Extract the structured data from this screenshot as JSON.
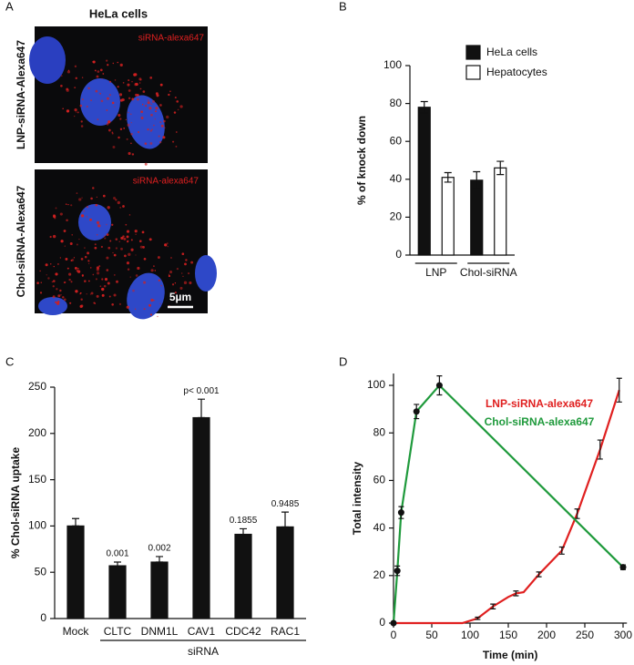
{
  "panel_labels": [
    "A",
    "B",
    "C",
    "D"
  ],
  "panel_a": {
    "title": "HeLa  cells",
    "images": [
      {
        "row_label": "LNP-siRNA-Alexa647",
        "stain_label": "siRNA-alexa647"
      },
      {
        "row_label": "Chol-siRNA-Alexa647",
        "stain_label": "siRNA-alexa647",
        "scale_bar": "5µm"
      }
    ]
  },
  "chart_data": [
    {
      "type": "bar",
      "ylabel": "% of knock down",
      "categories": [
        "LNP",
        "Chol-siRNA"
      ],
      "series": [
        {
          "name": "HeLa cells",
          "color": "#111111",
          "values": [
            78,
            39.5
          ],
          "errors": [
            3,
            4.5
          ]
        },
        {
          "name": "Hepatocytes",
          "color": "#ffffff",
          "values": [
            41,
            46
          ],
          "errors": [
            2.5,
            3.5
          ]
        }
      ],
      "ylim": [
        0,
        100
      ],
      "yticks": [
        0,
        20,
        40,
        60,
        80,
        100
      ],
      "legend": "upper right"
    },
    {
      "type": "bar",
      "ylabel": "% Chol-siRNA uptake",
      "xlabel": "siRNA",
      "categories": [
        "Mock",
        "CLTC",
        "DNM1L",
        "CAV1",
        "CDC42",
        "RAC1"
      ],
      "values": [
        100,
        57,
        61,
        217,
        91,
        99
      ],
      "errors": [
        8,
        4,
        6,
        20,
        6,
        16
      ],
      "annotations": [
        null,
        "0.001",
        "0.002",
        "p< 0.001",
        "0.1855",
        "0.9485"
      ],
      "color": "#111111",
      "ylim": [
        0,
        250
      ],
      "yticks": [
        0,
        50,
        100,
        150,
        200,
        250
      ]
    },
    {
      "type": "line",
      "xlabel": "Time (min)",
      "ylabel": "Total intensity",
      "series": [
        {
          "name": "LNP-siRNA-alexa647",
          "color": "#e02020",
          "x": [
            0,
            50,
            90,
            110,
            130,
            150,
            160,
            170,
            190,
            220,
            240,
            270,
            295
          ],
          "values": [
            0,
            0,
            0,
            2,
            7,
            11,
            12.5,
            13,
            20.5,
            30.5,
            46,
            73,
            98
          ],
          "errors": [
            null,
            null,
            null,
            0.5,
            1,
            null,
            1,
            null,
            1,
            1.5,
            2,
            4,
            5
          ]
        },
        {
          "name": "Chol-siRNA-alexa647",
          "color": "#1f9a3c",
          "marker_color": "#111111",
          "x": [
            0,
            5,
            10,
            30,
            60,
            300
          ],
          "values": [
            0,
            22,
            46.5,
            89,
            100,
            23.5
          ],
          "errors": [
            0,
            2,
            2.5,
            3,
            4,
            1
          ]
        }
      ],
      "xlim": [
        0,
        305
      ],
      "ylim": [
        0,
        105
      ],
      "xticks": [
        0,
        50,
        100,
        150,
        200,
        250,
        300
      ],
      "yticks": [
        0,
        20,
        40,
        60,
        80,
        100
      ]
    }
  ]
}
